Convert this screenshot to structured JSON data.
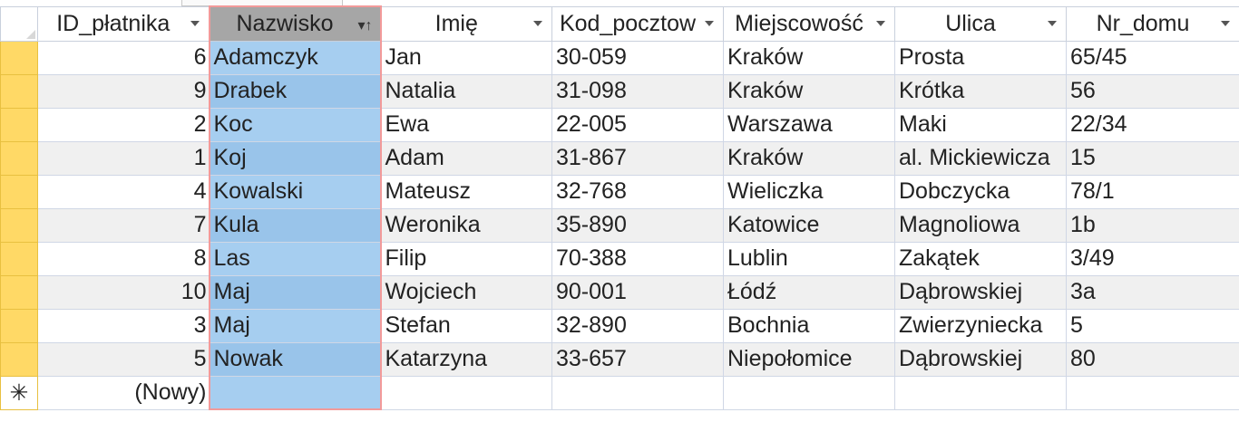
{
  "columns": [
    {
      "key": "id",
      "label": "ID_płatnika"
    },
    {
      "key": "nazwisko",
      "label": "Nazwisko"
    },
    {
      "key": "imie",
      "label": "Imię"
    },
    {
      "key": "kod",
      "label": "Kod_pocztow"
    },
    {
      "key": "miejscowosc",
      "label": "Miejscowość"
    },
    {
      "key": "ulica",
      "label": "Ulica"
    },
    {
      "key": "nr_domu",
      "label": "Nr_domu"
    }
  ],
  "rows": [
    {
      "id": "6",
      "nazwisko": "Adamczyk",
      "imie": "Jan",
      "kod": "30-059",
      "miejscowosc": "Kraków",
      "ulica": "Prosta",
      "nr_domu": "65/45"
    },
    {
      "id": "9",
      "nazwisko": "Drabek",
      "imie": "Natalia",
      "kod": "31-098",
      "miejscowosc": "Kraków",
      "ulica": "Krótka",
      "nr_domu": "56"
    },
    {
      "id": "2",
      "nazwisko": "Koc",
      "imie": "Ewa",
      "kod": "22-005",
      "miejscowosc": "Warszawa",
      "ulica": "Maki",
      "nr_domu": "22/34"
    },
    {
      "id": "1",
      "nazwisko": "Koj",
      "imie": "Adam",
      "kod": "31-867",
      "miejscowosc": "Kraków",
      "ulica": "al. Mickiewicza",
      "nr_domu": "15"
    },
    {
      "id": "4",
      "nazwisko": "Kowalski",
      "imie": "Mateusz",
      "kod": "32-768",
      "miejscowosc": "Wieliczka",
      "ulica": "Dobczycka",
      "nr_domu": "78/1"
    },
    {
      "id": "7",
      "nazwisko": "Kula",
      "imie": "Weronika",
      "kod": "35-890",
      "miejscowosc": "Katowice",
      "ulica": "Magnoliowa",
      "nr_domu": "1b"
    },
    {
      "id": "8",
      "nazwisko": "Las",
      "imie": "Filip",
      "kod": "70-388",
      "miejscowosc": "Lublin",
      "ulica": "Zakątek",
      "nr_domu": "3/49"
    },
    {
      "id": "10",
      "nazwisko": "Maj",
      "imie": "Wojciech",
      "kod": "90-001",
      "miejscowosc": "Łódź",
      "ulica": "Dąbrowskiej",
      "nr_domu": "3a"
    },
    {
      "id": "3",
      "nazwisko": "Maj",
      "imie": "Stefan",
      "kod": "32-890",
      "miejscowosc": "Bochnia",
      "ulica": "Zwierzyniecka",
      "nr_domu": "5"
    },
    {
      "id": "5",
      "nazwisko": "Nowak",
      "imie": "Katarzyna",
      "kod": "33-657",
      "miejscowosc": "Niepołomice",
      "ulica": "Dąbrowskiej",
      "nr_domu": "80"
    }
  ],
  "new_row": {
    "id_placeholder": "(Nowy)",
    "marker": "✳"
  },
  "sorted_column": "nazwisko",
  "colors": {
    "selector": "#ffd966",
    "selected_column": "#a6cef0",
    "selected_border": "#f29a9a",
    "sorted_header": "#a6a6a6",
    "alt_row": "#f0f0f0"
  },
  "icons": {
    "dropdown": "chevron-down-icon",
    "sort": "sort-ascending-icon",
    "new_record": "new-record-icon"
  }
}
